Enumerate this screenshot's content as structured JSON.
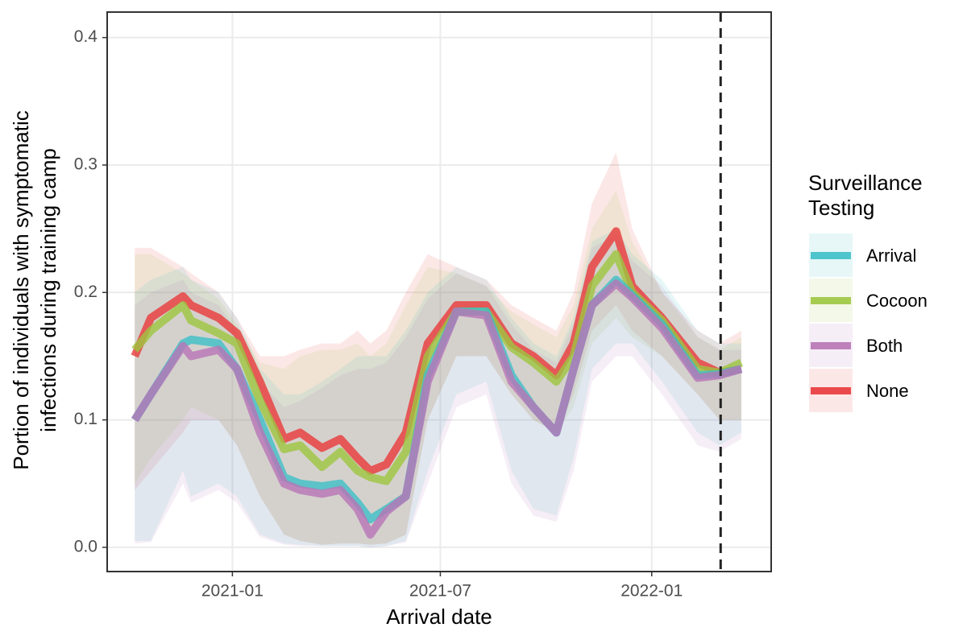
{
  "chart_data": {
    "type": "line",
    "xlabel": "Arrival date",
    "ylabel": [
      "Portion of individuals with symptomatic",
      "infections during training camp"
    ],
    "legend_title": "Surveillance Testing",
    "legend": "right",
    "grid": true,
    "vline": "2022-03-02",
    "xlim": [
      "2020-09-14",
      "2022-04-15"
    ],
    "xticks": [
      {
        "value": "2021-01-01",
        "label": "2021-01"
      },
      {
        "value": "2021-07-01",
        "label": "2021-07"
      },
      {
        "value": "2022-01-01",
        "label": "2022-01"
      }
    ],
    "ylim": [
      -0.019,
      0.42
    ],
    "yticks": [
      {
        "value": 0,
        "label": "0.0"
      },
      0.1,
      0.2,
      0.3,
      0.4
    ],
    "x": [
      "2020-10-08",
      "2020-10-22",
      "2020-11-19",
      "2020-11-26",
      "2020-12-20",
      "2021-01-05",
      "2021-01-25",
      "2021-02-15",
      "2021-03-01",
      "2021-03-20",
      "2021-04-05",
      "2021-04-20",
      "2021-05-01",
      "2021-05-15",
      "2021-06-01",
      "2021-06-20",
      "2021-07-15",
      "2021-08-10",
      "2021-09-01",
      "2021-09-20",
      "2021-10-10",
      "2021-10-25",
      "2021-11-10",
      "2021-12-01",
      "2021-12-15",
      "2022-01-10",
      "2022-02-10",
      "2022-03-01",
      "2022-03-20"
    ],
    "series": [
      {
        "name": "Arrival",
        "color": "#3dbfc7",
        "values": [
          0.1,
          0.12,
          0.16,
          0.163,
          0.16,
          0.14,
          0.1,
          0.055,
          0.05,
          0.048,
          0.05,
          0.035,
          0.022,
          0.03,
          0.04,
          0.135,
          0.185,
          0.185,
          0.135,
          0.11,
          0.09,
          0.14,
          0.19,
          0.21,
          0.198,
          0.175,
          0.135,
          0.136,
          0.14
        ],
        "upper": [
          0.2,
          0.21,
          0.22,
          0.21,
          0.2,
          0.18,
          0.14,
          0.12,
          0.12,
          0.13,
          0.14,
          0.15,
          0.15,
          0.15,
          0.17,
          0.2,
          0.22,
          0.21,
          0.18,
          0.16,
          0.15,
          0.18,
          0.24,
          0.25,
          0.23,
          0.21,
          0.17,
          0.16,
          0.16
        ],
        "lower": [
          0.005,
          0.005,
          0.06,
          0.04,
          0.05,
          0.04,
          0.01,
          0.003,
          0.002,
          0.001,
          0.001,
          0.001,
          0,
          0.001,
          0.005,
          0.06,
          0.12,
          0.13,
          0.06,
          0.03,
          0.025,
          0.07,
          0.14,
          0.16,
          0.16,
          0.13,
          0.09,
          0.08,
          0.09
        ]
      },
      {
        "name": "Cocoon",
        "color": "#9dc540",
        "values": [
          0.155,
          0.17,
          0.19,
          0.178,
          0.168,
          0.16,
          0.115,
          0.077,
          0.08,
          0.063,
          0.075,
          0.06,
          0.055,
          0.052,
          0.075,
          0.15,
          0.185,
          0.185,
          0.157,
          0.145,
          0.13,
          0.15,
          0.205,
          0.23,
          0.2,
          0.178,
          0.14,
          0.137,
          0.145
        ],
        "upper": [
          0.23,
          0.23,
          0.215,
          0.21,
          0.195,
          0.175,
          0.145,
          0.14,
          0.15,
          0.155,
          0.155,
          0.16,
          0.15,
          0.16,
          0.19,
          0.22,
          0.215,
          0.205,
          0.185,
          0.175,
          0.165,
          0.19,
          0.25,
          0.28,
          0.24,
          0.2,
          0.165,
          0.155,
          0.165
        ],
        "lower": [
          0.05,
          0.07,
          0.1,
          0.11,
          0.1,
          0.08,
          0.04,
          0.01,
          0.005,
          0.002,
          0.003,
          0.003,
          0.002,
          0.003,
          0.01,
          0.1,
          0.15,
          0.15,
          0.12,
          0.1,
          0.09,
          0.11,
          0.16,
          0.18,
          0.165,
          0.15,
          0.12,
          0.1,
          0.1
        ]
      },
      {
        "name": "Both",
        "color": "#b874b6",
        "values": [
          0.1,
          0.12,
          0.158,
          0.15,
          0.155,
          0.14,
          0.09,
          0.05,
          0.045,
          0.042,
          0.045,
          0.03,
          0.01,
          0.028,
          0.04,
          0.13,
          0.185,
          0.182,
          0.13,
          0.11,
          0.09,
          0.14,
          0.19,
          0.207,
          0.196,
          0.172,
          0.133,
          0.135,
          0.14
        ],
        "upper": [
          0.19,
          0.2,
          0.21,
          0.2,
          0.19,
          0.17,
          0.13,
          0.11,
          0.115,
          0.125,
          0.135,
          0.14,
          0.14,
          0.145,
          0.165,
          0.195,
          0.215,
          0.205,
          0.175,
          0.155,
          0.145,
          0.175,
          0.235,
          0.245,
          0.225,
          0.205,
          0.165,
          0.155,
          0.155
        ],
        "lower": [
          0.003,
          0.004,
          0.05,
          0.035,
          0.045,
          0.035,
          0.008,
          0.002,
          0.001,
          0.001,
          0.001,
          0.001,
          0,
          0.001,
          0.004,
          0.05,
          0.11,
          0.12,
          0.05,
          0.025,
          0.02,
          0.06,
          0.13,
          0.15,
          0.15,
          0.12,
          0.08,
          0.075,
          0.085
        ]
      },
      {
        "name": "None",
        "color": "#e8393a",
        "values": [
          0.15,
          0.18,
          0.197,
          0.19,
          0.18,
          0.168,
          0.13,
          0.085,
          0.09,
          0.078,
          0.085,
          0.07,
          0.06,
          0.065,
          0.09,
          0.16,
          0.19,
          0.19,
          0.16,
          0.15,
          0.135,
          0.16,
          0.22,
          0.248,
          0.205,
          0.18,
          0.145,
          0.137,
          0.14
        ],
        "upper": [
          0.235,
          0.235,
          0.22,
          0.215,
          0.2,
          0.18,
          0.15,
          0.15,
          0.155,
          0.16,
          0.16,
          0.17,
          0.16,
          0.17,
          0.2,
          0.23,
          0.22,
          0.21,
          0.19,
          0.18,
          0.17,
          0.2,
          0.27,
          0.31,
          0.25,
          0.2,
          0.17,
          0.16,
          0.17
        ],
        "lower": [
          0.045,
          0.06,
          0.09,
          0.1,
          0.1,
          0.08,
          0.04,
          0.01,
          0.005,
          0.002,
          0.003,
          0.003,
          0.002,
          0.003,
          0.01,
          0.1,
          0.15,
          0.15,
          0.12,
          0.1,
          0.09,
          0.12,
          0.17,
          0.19,
          0.17,
          0.15,
          0.12,
          0.1,
          0.1
        ]
      }
    ]
  }
}
